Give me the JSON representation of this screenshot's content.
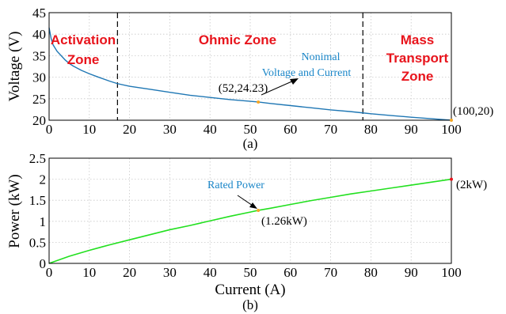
{
  "chart_data": [
    {
      "type": "line",
      "subplot_label": "(a)",
      "xlabel": "",
      "ylabel": "Voltage (V)",
      "xlim": [
        0,
        100
      ],
      "ylim": [
        20,
        45
      ],
      "xticks": [
        0,
        10,
        20,
        30,
        40,
        50,
        60,
        70,
        80,
        90,
        100
      ],
      "yticks": [
        20,
        25,
        30,
        35,
        40,
        45
      ],
      "grid": true,
      "line_color": "#1f77b4",
      "series": [
        {
          "x": [
            0,
            0.5,
            1,
            2,
            3,
            4,
            5,
            6,
            8,
            10,
            12,
            15,
            17,
            20,
            25,
            30,
            35,
            40,
            45,
            50,
            52,
            55,
            60,
            65,
            70,
            75,
            78,
            80,
            85,
            90,
            95,
            100
          ],
          "values": [
            41.5,
            39.0,
            37.5,
            36.0,
            35.0,
            34.0,
            33.2,
            32.6,
            31.6,
            30.8,
            30.1,
            29.1,
            28.5,
            27.9,
            27.2,
            26.5,
            25.8,
            25.3,
            24.8,
            24.4,
            24.23,
            23.9,
            23.4,
            22.9,
            22.4,
            22.0,
            21.7,
            21.5,
            21.1,
            20.7,
            20.35,
            20.0
          ]
        }
      ],
      "zone_boundaries": [
        17,
        78
      ],
      "zones": [
        {
          "label_line1": "Activation",
          "label_line2": "Zone"
        },
        {
          "label_line1": "Ohmic Zone",
          "label_line2": ""
        },
        {
          "label_line1": "Mass",
          "label_line2": "Transport",
          "label_line3": "Zone"
        }
      ],
      "marked_points": [
        {
          "x": 52,
          "y": 24.23,
          "label": "(52,24.23)",
          "color": "#f5a623"
        },
        {
          "x": 100,
          "y": 20,
          "label": "(100,20)",
          "color": "#f5a623"
        }
      ],
      "annotation": {
        "line1": "Nonimal",
        "line2": "Voltage and Current",
        "color": "#1a86c8"
      }
    },
    {
      "type": "line",
      "subplot_label": "(b)",
      "xlabel": "Current (A)",
      "ylabel": "Power (kW)",
      "xlim": [
        0,
        100
      ],
      "ylim": [
        0,
        2.5
      ],
      "xticks": [
        0,
        10,
        20,
        30,
        40,
        50,
        60,
        70,
        80,
        90,
        100
      ],
      "yticks": [
        0,
        0.5,
        1,
        1.5,
        2,
        2.5
      ],
      "ytick_labels": [
        "0",
        "0.5",
        "1",
        "1.5",
        "2",
        "2.5"
      ],
      "grid": true,
      "line_color": "#22e01f",
      "series": [
        {
          "x": [
            0,
            5,
            10,
            15,
            20,
            25,
            30,
            35,
            40,
            45,
            50,
            52,
            55,
            60,
            65,
            70,
            75,
            80,
            85,
            90,
            95,
            100
          ],
          "values": [
            0,
            0.17,
            0.31,
            0.44,
            0.56,
            0.68,
            0.8,
            0.9,
            1.01,
            1.12,
            1.22,
            1.26,
            1.31,
            1.4,
            1.49,
            1.57,
            1.65,
            1.72,
            1.79,
            1.86,
            1.93,
            2.0
          ]
        }
      ],
      "marked_points": [
        {
          "x": 52,
          "y": 1.26,
          "label": "(1.26kW)",
          "color": "#f5a623"
        },
        {
          "x": 100,
          "y": 2.0,
          "label": "(2kW)",
          "color": "#e8141c"
        }
      ],
      "annotation": {
        "line1": "Rated Power",
        "color": "#1a86c8"
      }
    }
  ]
}
